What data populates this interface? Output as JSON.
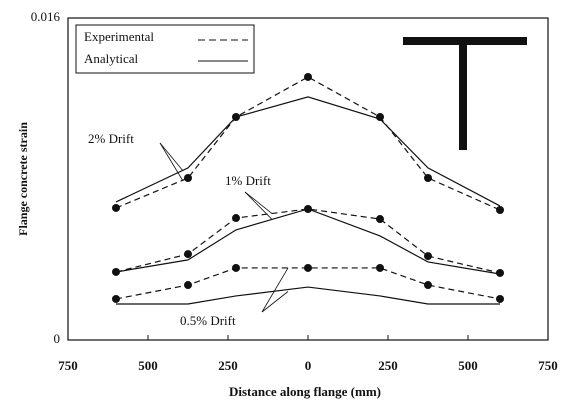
{
  "chart_data": {
    "type": "line",
    "xlabel": "Distance along flange (mm)",
    "ylabel": "Flange concrete strain",
    "x": [
      -600,
      -375,
      -225,
      0,
      225,
      375,
      600
    ],
    "xlim": [
      -750,
      750
    ],
    "xticks": [
      {
        "value": -750,
        "label": "750"
      },
      {
        "value": -500,
        "label": "500"
      },
      {
        "value": -250,
        "label": "250"
      },
      0,
      250,
      500,
      750
    ],
    "ylim": [
      0,
      0.016
    ],
    "yticks": [
      0,
      0.016
    ],
    "legend": {
      "experimental": "Experimental",
      "analytical": "Analytical",
      "position": "upper left"
    },
    "color": "#111111",
    "groups": [
      {
        "label": "2% Drift",
        "experimental": [
          0.00656,
          0.00805,
          0.01108,
          0.01307,
          0.01108,
          0.00805,
          0.00646
        ],
        "analytical": [
          0.00686,
          0.00855,
          0.01108,
          0.01208,
          0.01098,
          0.00855,
          0.00666
        ]
      },
      {
        "label": "1% Drift",
        "experimental": [
          0.00338,
          0.00427,
          0.00606,
          0.00651,
          0.00601,
          0.00417,
          0.00333
        ],
        "analytical": [
          0.00338,
          0.00398,
          0.00547,
          0.00651,
          0.00517,
          0.00388,
          0.00328
        ]
      },
      {
        "label": "0.5% Drift",
        "experimental": [
          0.00204,
          0.00273,
          0.00358,
          0.00358,
          0.00358,
          0.00273,
          0.00204
        ],
        "analytical": [
          0.00179,
          0.00179,
          0.00219,
          0.00263,
          0.00219,
          0.00179,
          0.00179
        ]
      }
    ]
  }
}
